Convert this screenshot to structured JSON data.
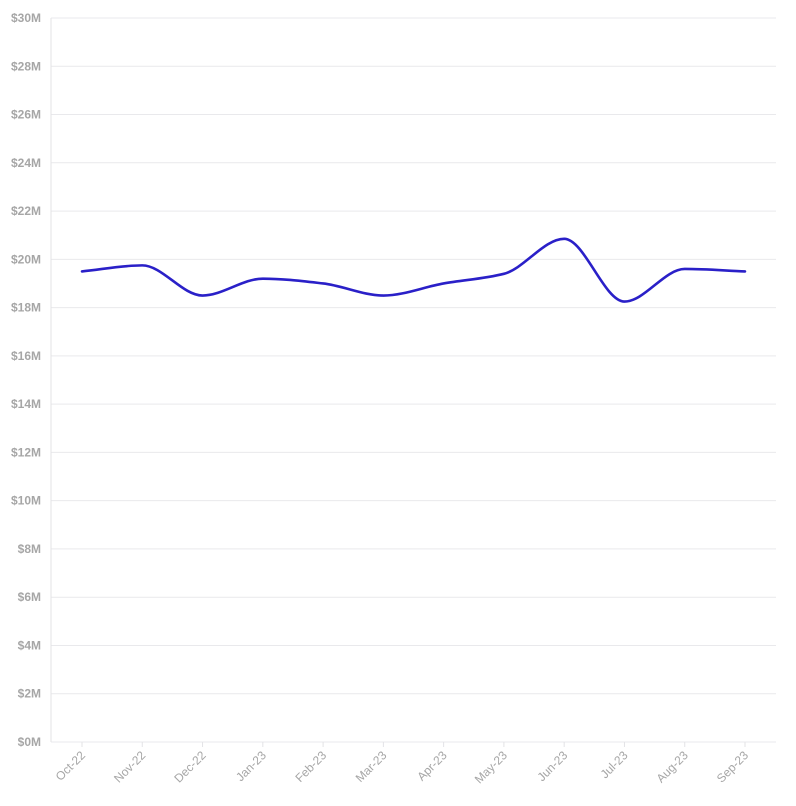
{
  "chart_data": {
    "type": "line",
    "title": "",
    "xlabel": "",
    "ylabel": "",
    "categories": [
      "Oct-22",
      "Nov-22",
      "Dec-22",
      "Jan-23",
      "Feb-23",
      "Mar-23",
      "Apr-23",
      "May-23",
      "Jun-23",
      "Jul-23",
      "Aug-23",
      "Sep-23"
    ],
    "series": [
      {
        "values": [
          19.5,
          19.75,
          18.5,
          19.2,
          19.0,
          18.5,
          19.0,
          19.4,
          20.85,
          18.25,
          19.6,
          19.5
        ]
      }
    ],
    "ylim": [
      0,
      30
    ],
    "yticks": [
      {
        "value": 0,
        "label": "$0M"
      },
      {
        "value": 2,
        "label": "$2M"
      },
      {
        "value": 4,
        "label": "$4M"
      },
      {
        "value": 6,
        "label": "$6M"
      },
      {
        "value": 8,
        "label": "$8M"
      },
      {
        "value": 10,
        "label": "$10M"
      },
      {
        "value": 12,
        "label": "$12M"
      },
      {
        "value": 14,
        "label": "$14M"
      },
      {
        "value": 16,
        "label": "$16M"
      },
      {
        "value": 18,
        "label": "$18M"
      },
      {
        "value": 20,
        "label": "$20M"
      },
      {
        "value": 22,
        "label": "$22M"
      },
      {
        "value": 24,
        "label": "$24M"
      },
      {
        "value": 26,
        "label": "$26M"
      },
      {
        "value": 28,
        "label": "$28M"
      },
      {
        "value": 30,
        "label": "$30M"
      }
    ],
    "grid": true,
    "colors": {
      "line": "#2a20c8",
      "grid": "#e9e9ec",
      "tick_text": "#a6a6a6"
    }
  }
}
